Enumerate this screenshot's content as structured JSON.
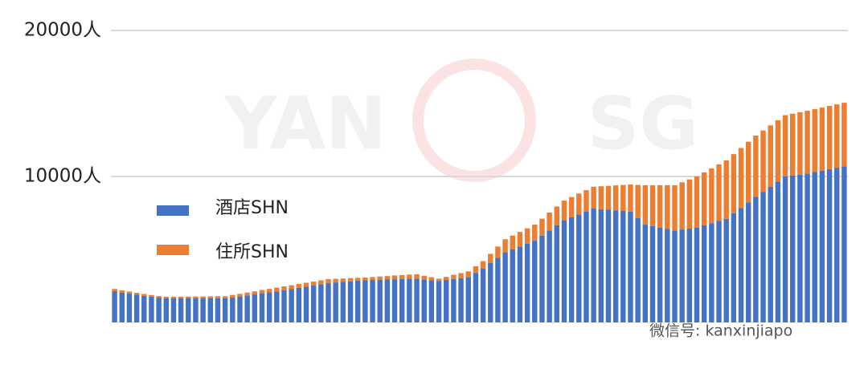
{
  "chart_data": {
    "type": "stacked_bar",
    "categories": [
      null,
      null,
      null,
      null,
      null,
      null,
      null,
      null,
      null,
      null,
      null,
      null,
      null,
      null,
      null,
      null,
      null,
      null,
      null,
      null,
      null,
      null,
      null,
      null,
      null,
      null,
      null,
      null,
      null,
      null,
      null,
      null,
      null,
      null,
      null,
      null,
      null,
      null,
      null,
      null,
      null,
      null,
      null,
      null,
      null,
      null,
      null,
      null,
      null,
      null,
      null,
      null,
      null,
      null,
      null,
      null,
      null,
      null,
      null,
      null,
      null,
      null,
      null,
      null,
      null,
      null,
      null,
      null,
      null,
      null,
      null,
      null,
      null,
      null,
      null,
      null,
      null,
      null,
      null,
      null,
      null,
      null,
      null,
      null,
      null,
      null,
      null,
      null,
      null,
      null,
      null,
      null,
      null,
      null,
      null,
      null,
      null,
      null,
      null,
      null
    ],
    "series": [
      {
        "name": "酒店SHN",
        "color": "#4472c4",
        "values": [
          2140,
          2050,
          1980,
          1900,
          1820,
          1760,
          1700,
          1650,
          1650,
          1650,
          1650,
          1650,
          1650,
          1650,
          1650,
          1650,
          1720,
          1780,
          1850,
          1920,
          2000,
          2060,
          2130,
          2200,
          2280,
          2370,
          2450,
          2530,
          2620,
          2700,
          2740,
          2780,
          2820,
          2860,
          2900,
          2910,
          2930,
          2940,
          2960,
          2970,
          2990,
          3000,
          2950,
          2900,
          2850,
          2910,
          2980,
          3040,
          3100,
          3400,
          3700,
          4070,
          4430,
          4800,
          5000,
          5200,
          5400,
          5600,
          5950,
          6300,
          6650,
          7000,
          7200,
          7400,
          7600,
          7800,
          7760,
          7720,
          7680,
          7640,
          7600,
          7150,
          6700,
          6600,
          6500,
          6400,
          6300,
          6370,
          6430,
          6500,
          6650,
          6800,
          6950,
          7100,
          7480,
          7850,
          8230,
          8600,
          8950,
          9300,
          9650,
          10000,
          10070,
          10130,
          10200,
          10300,
          10400,
          10500,
          10600,
          10700
        ]
      },
      {
        "name": "住所SHN",
        "color": "#ed7d31",
        "values": [
          160,
          150,
          140,
          130,
          130,
          120,
          110,
          110,
          115,
          120,
          125,
          130,
          135,
          140,
          145,
          150,
          165,
          180,
          195,
          210,
          225,
          240,
          255,
          270,
          270,
          270,
          270,
          270,
          270,
          270,
          250,
          230,
          220,
          200,
          180,
          200,
          220,
          240,
          260,
          280,
          290,
          300,
          250,
          200,
          150,
          210,
          280,
          340,
          400,
          450,
          500,
          630,
          770,
          900,
          950,
          1000,
          1050,
          1100,
          1160,
          1230,
          1290,
          1350,
          1390,
          1430,
          1460,
          1500,
          1570,
          1640,
          1710,
          1780,
          1850,
          2270,
          2700,
          2800,
          2900,
          3000,
          3100,
          3230,
          3370,
          3500,
          3630,
          3750,
          3880,
          4000,
          4050,
          4100,
          4150,
          4200,
          4200,
          4200,
          4200,
          4200,
          4230,
          4270,
          4300,
          4310,
          4320,
          4330,
          4340,
          4350
        ]
      }
    ],
    "ylim": [
      0,
      20000
    ],
    "yticks": [
      {
        "value": 10000,
        "label": "10000人"
      },
      {
        "value": 20000,
        "label": "20000人"
      }
    ],
    "grid": true,
    "legend": "left",
    "watermarks": [
      "YAN",
      "SG",
      "微信号: kanxinjiapo"
    ]
  }
}
